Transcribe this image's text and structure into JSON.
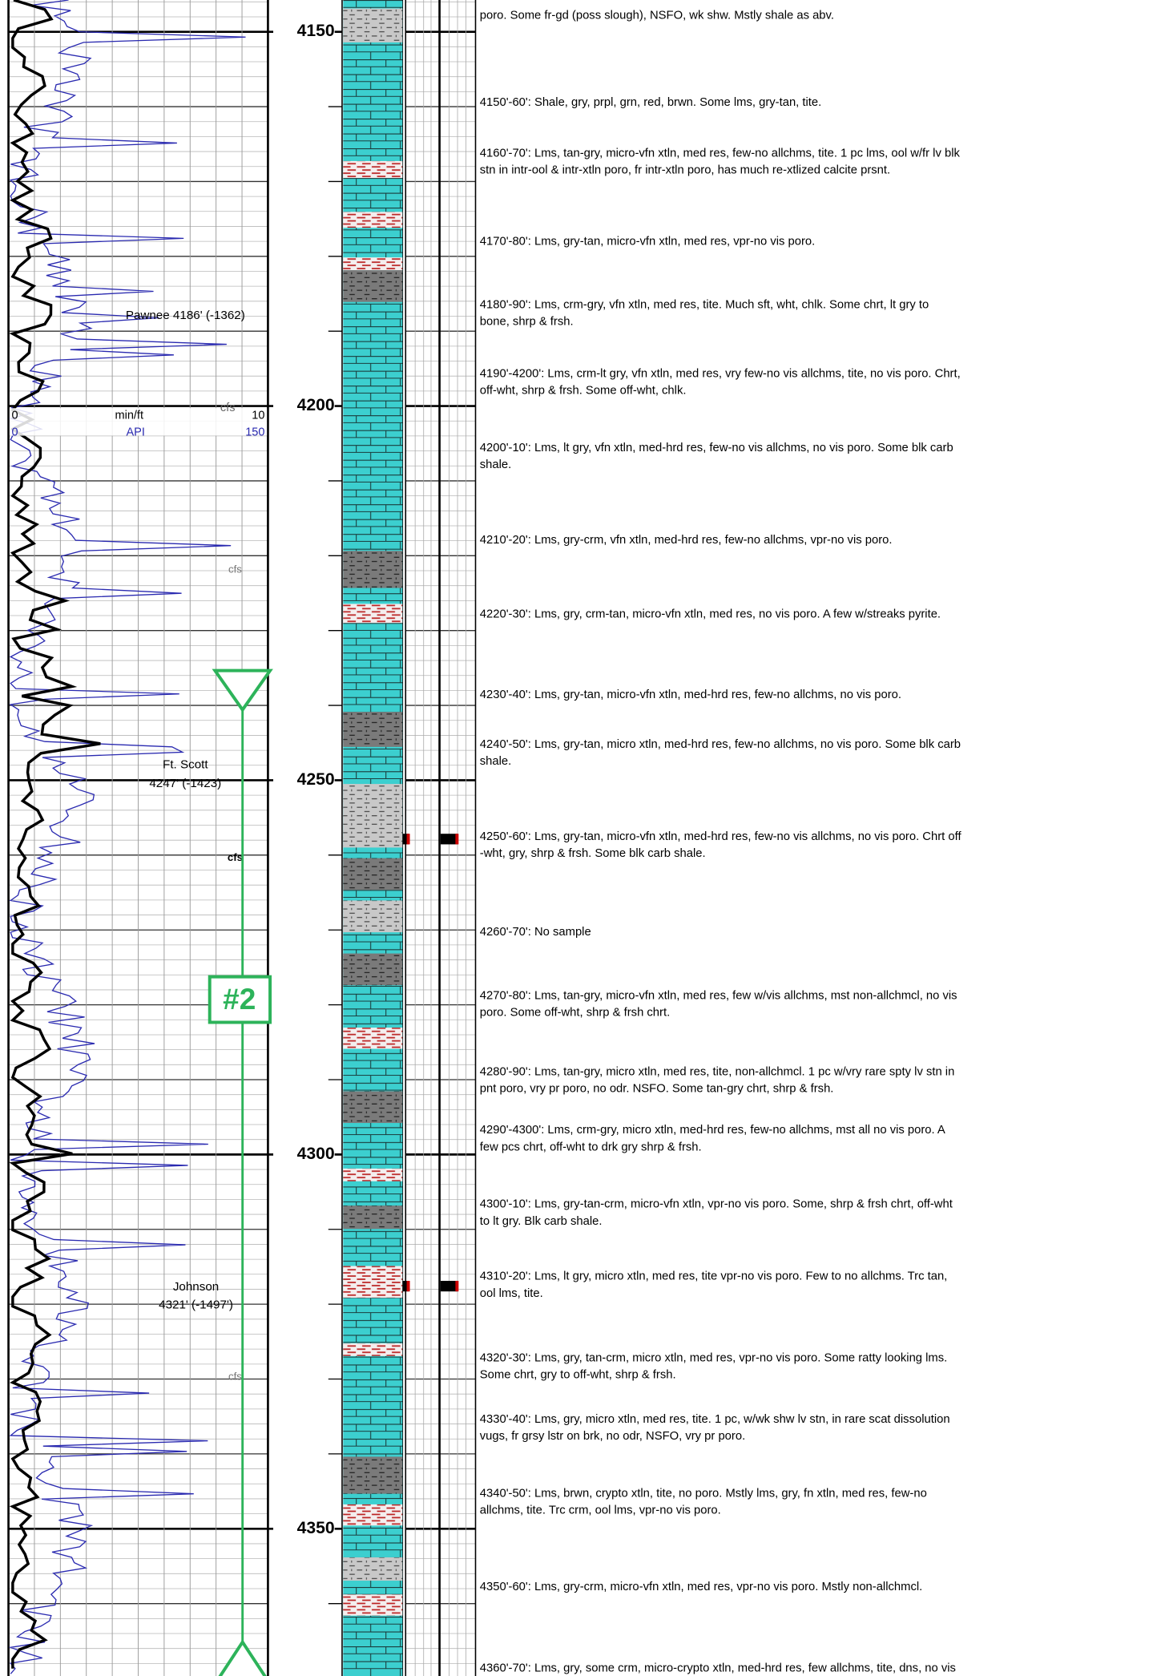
{
  "depth_labels": [
    "4150",
    "4200",
    "4250",
    "4300",
    "4350"
  ],
  "curve_header": {
    "min_left": "0",
    "unit_top": "min/ft",
    "cfs": "cfs",
    "max_top": "10",
    "min_blue": "0",
    "unit_blue": "API",
    "max_blue": "150"
  },
  "cfs_labels": [
    "cfs",
    "cfs",
    "cfs",
    "cfs"
  ],
  "formation_tops": [
    {
      "lines": [
        "Pawnee 4186' (-1362)"
      ]
    },
    {
      "lines": [
        "Ft. Scott",
        "4247' (-1423)"
      ]
    },
    {
      "lines": [
        "Johnson",
        "4321' (-1497')"
      ]
    }
  ],
  "marker": {
    "label": "#2"
  },
  "descriptions": [
    {
      "lines": [
        "poro. Some fr-gd (poss slough), NSFO, wk shw. Mstly shale as abv."
      ]
    },
    {
      "lines": [
        "4150'-60': Shale, gry, prpl, grn, red, brwn. Some lms, gry-tan, tite."
      ]
    },
    {
      "lines": [
        "4160'-70': Lms, tan-gry, micro-vfn xtln, med res, few-no allchms, tite. 1 pc lms, ool w/fr lv blk",
        "stn in intr-ool & intr-xtln poro, fr intr-xtln poro, has much re-xtlized calcite prsnt."
      ]
    },
    {
      "lines": [
        "4170'-80': Lms, gry-tan, micro-vfn xtln, med res, vpr-no vis poro."
      ]
    },
    {
      "lines": [
        "4180'-90': Lms, crm-gry, vfn xtln, med res, tite. Much sft, wht, chlk. Some chrt, lt gry to",
        "bone, shrp & frsh."
      ]
    },
    {
      "lines": [
        "4190'-4200': Lms, crm-lt gry, vfn xtln, med res, vry few-no vis allchms, tite, no vis poro. Chrt,",
        "off-wht, shrp & frsh. Some off-wht, chlk."
      ]
    },
    {
      "lines": [
        "4200'-10': Lms, lt gry, vfn xtln, med-hrd res, few-no vis allchms, no vis poro. Some blk carb",
        "shale."
      ]
    },
    {
      "lines": [
        "4210'-20': Lms, gry-crm, vfn xtln, med-hrd res, few-no allchms, vpr-no vis poro."
      ]
    },
    {
      "lines": [
        "4220'-30': Lms, gry, crm-tan, micro-vfn xtln, med res, no vis poro. A few w/streaks pyrite."
      ]
    },
    {
      "lines": [
        "4230'-40': Lms, gry-tan, micro-vfn xtln, med-hrd res, few-no allchms, no vis poro."
      ]
    },
    {
      "lines": [
        "4240'-50': Lms, gry-tan, micro xtln, med-hrd res, few-no allchms, no vis poro. Some blk carb",
        "shale."
      ]
    },
    {
      "lines": [
        "4250'-60': Lms, gry-tan, micro-vfn xtln, med-hrd res, few-no vis allchms, no vis poro. Chrt off",
        "-wht, gry, shrp & frsh. Some blk carb shale."
      ]
    },
    {
      "lines": [
        "4260'-70': No sample"
      ]
    },
    {
      "lines": [
        "4270'-80': Lms, tan-gry, micro-vfn xtln, med res, few w/vis allchms, mst non-allchmcl, no vis",
        "poro. Some off-wht, shrp & frsh chrt."
      ]
    },
    {
      "lines": [
        "4280'-90': Lms, tan-gry, micro xtln, med res, tite, non-allchmcl. 1 pc w/vry rare spty lv stn in",
        "pnt poro, vry pr poro, no odr. NSFO. Some tan-gry chrt, shrp & frsh."
      ]
    },
    {
      "lines": [
        "4290'-4300': Lms, crm-gry, micro xtln, med-hrd res, few-no allchms, mst all no vis poro. A",
        "few pcs chrt, off-wht to drk gry shrp & frsh."
      ]
    },
    {
      "lines": [
        "4300'-10': Lms, gry-tan-crm, micro-vfn xtln, vpr-no vis poro. Some, shrp & frsh chrt, off-wht",
        "to lt gry. Blk carb shale."
      ]
    },
    {
      "lines": [
        "4310'-20': Lms, lt gry, micro xtln, med res, tite vpr-no vis poro. Few to no allchms. Trc tan,",
        "ool lms, tite."
      ]
    },
    {
      "lines": [
        "4320'-30': Lms, gry, tan-crm, micro xtln, med res, vpr-no vis poro. Some ratty looking lms.",
        "Some chrt, gry to off-wht, shrp & frsh."
      ]
    },
    {
      "lines": [
        "4330'-40': Lms, gry, micro xtln, med res, tite. 1 pc, w/wk shw lv stn, in rare scat dissolution",
        "vugs, fr grsy lstr on brk, no odr, NSFO, vry pr poro."
      ]
    },
    {
      "lines": [
        "4340'-50': Lms, brwn, crypto xtln, tite, no poro. Mstly lms, gry, fn xtln, med res, few-no",
        "allchms, tite. Trc crm, ool lms, vpr-no vis poro."
      ]
    },
    {
      "lines": [
        "4350'-60': Lms, gry-crm, micro-vfn xtln, med res, vpr-no vis poro. Mstly non-allchmcl."
      ]
    },
    {
      "lines": [
        "4360'-70': Lms, gry, some crm, micro-crypto xtln, med-hrd res, few allchms, tite, dns, no vis"
      ]
    }
  ]
}
